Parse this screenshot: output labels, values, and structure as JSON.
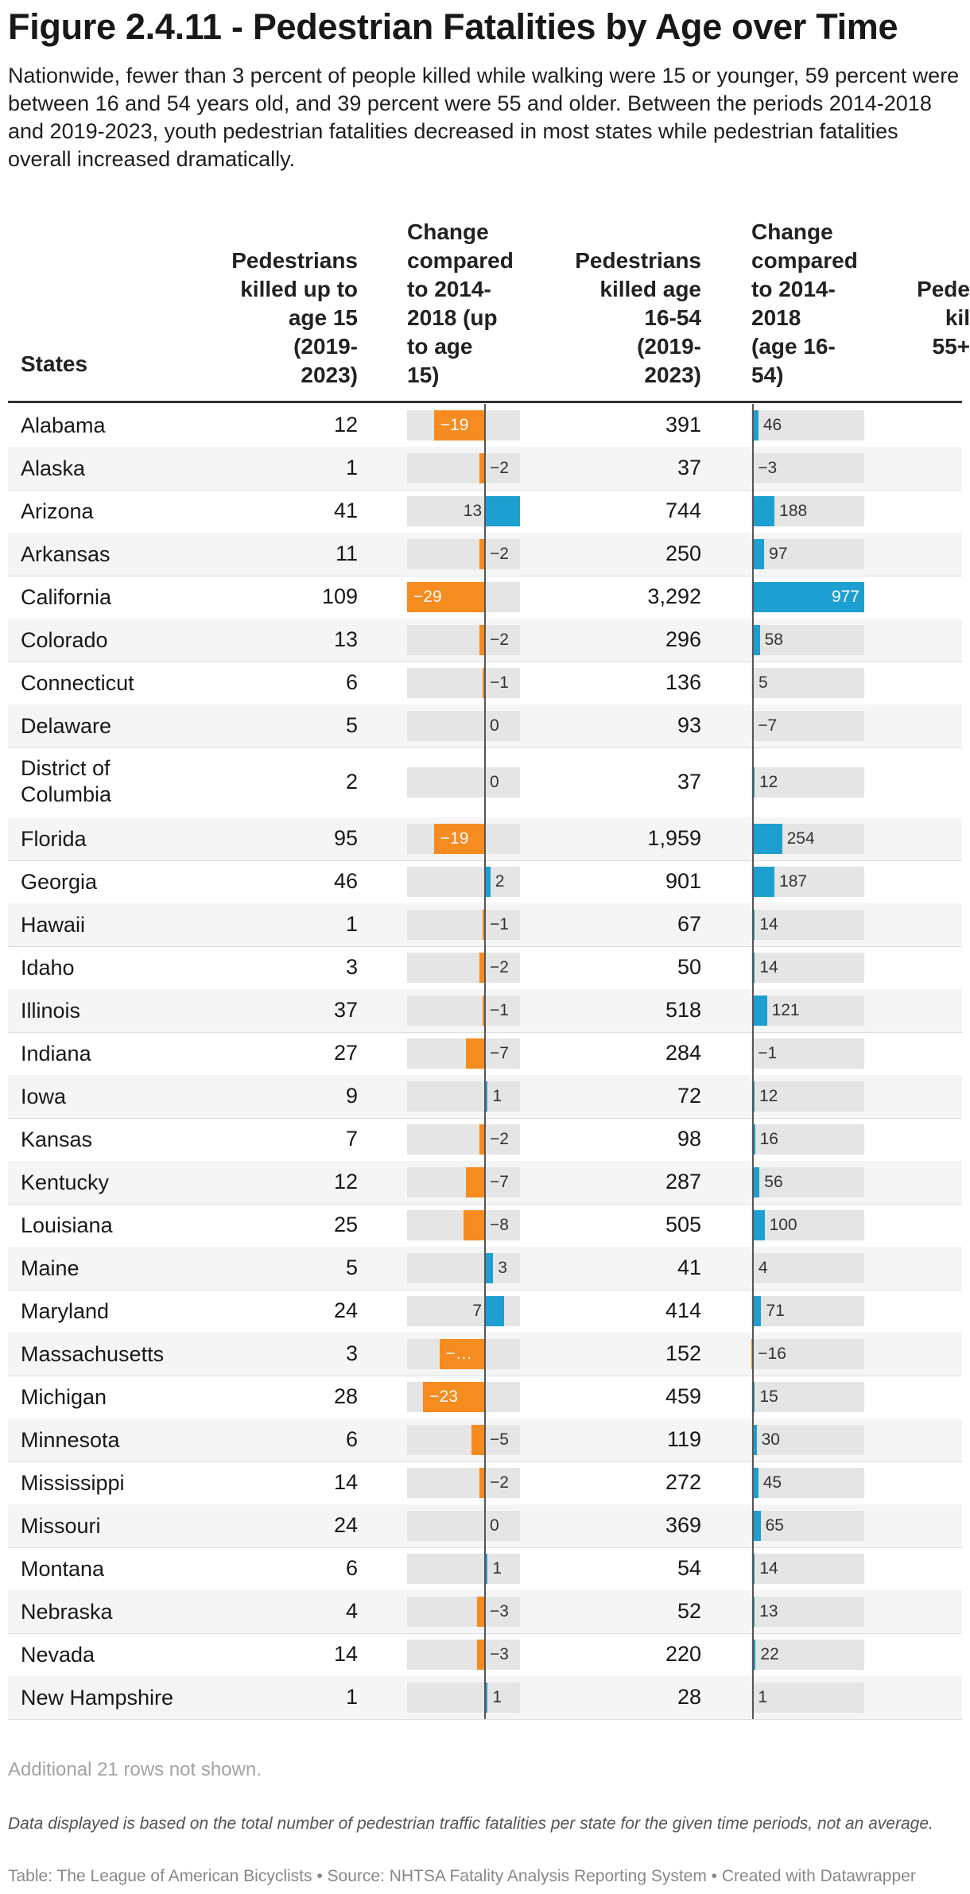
{
  "title": "Figure 2.4.11 - Pedestrian Fatalities by Age over Time",
  "subtitle": "Nationwide, fewer than 3 percent of people killed while walking were 15 or younger, 59 percent were between 16 and 54 years old, and 39 percent were 55 and older. Between the periods 2014-2018 and 2019-2023, youth pedestrian fatalities decreased in most states while pedestrian fatalities overall increased dramatically.",
  "colors": {
    "negative": "#f68b1f",
    "positive": "#1d9fd1",
    "bar_background": "#e5e5e5"
  },
  "headers": {
    "state": "States",
    "killed_15_lines": [
      "Pedestrians",
      "killed up to",
      "age 15",
      "(2019-",
      "2023)"
    ],
    "change_15_lines": [
      "Change",
      "compared",
      "to 2014-",
      "2018 (up",
      "to age",
      "15)"
    ],
    "killed_16_54_lines": [
      "Pedestrians",
      "killed age",
      "16-54",
      "(2019-",
      "2023)"
    ],
    "change_16_54_lines": [
      "Change",
      "compared",
      "to 2014-",
      "2018",
      "(age 16-",
      "54)"
    ],
    "killed_55_lines": [
      "Pede",
      "kil",
      "55+"
    ]
  },
  "chart_data": {
    "type": "table",
    "columns": [
      "States",
      "Pedestrians killed up to age 15 (2019-2023)",
      "Change compared to 2014-2018 (up to age 15)",
      "Pedestrians killed age 16-54 (2019-2023)",
      "Change compared to 2014-2018 (age 16-54)"
    ],
    "change_15_domain": [
      -29,
      13
    ],
    "change_16_54_domain": [
      -16,
      977
    ],
    "rows": [
      {
        "state": "Alabama",
        "k15": "12",
        "c15": -19,
        "c15_label": "−19",
        "k1654": "391",
        "c1654": 46,
        "c1654_label": "46"
      },
      {
        "state": "Alaska",
        "k15": "1",
        "c15": -2,
        "c15_label": "−2",
        "k1654": "37",
        "c1654": -3,
        "c1654_label": "−3"
      },
      {
        "state": "Arizona",
        "k15": "41",
        "c15": 13,
        "c15_label": "13",
        "k1654": "744",
        "c1654": 188,
        "c1654_label": "188"
      },
      {
        "state": "Arkansas",
        "k15": "11",
        "c15": -2,
        "c15_label": "−2",
        "k1654": "250",
        "c1654": 97,
        "c1654_label": "97"
      },
      {
        "state": "California",
        "k15": "109",
        "c15": -29,
        "c15_label": "−29",
        "k1654": "3,292",
        "c1654": 977,
        "c1654_label": "977"
      },
      {
        "state": "Colorado",
        "k15": "13",
        "c15": -2,
        "c15_label": "−2",
        "k1654": "296",
        "c1654": 58,
        "c1654_label": "58"
      },
      {
        "state": "Connecticut",
        "k15": "6",
        "c15": -1,
        "c15_label": "−1",
        "k1654": "136",
        "c1654": 5,
        "c1654_label": "5"
      },
      {
        "state": "Delaware",
        "k15": "5",
        "c15": 0,
        "c15_label": "0",
        "k1654": "93",
        "c1654": -7,
        "c1654_label": "−7"
      },
      {
        "state": "District of Columbia",
        "k15": "2",
        "c15": 0,
        "c15_label": "0",
        "k1654": "37",
        "c1654": 12,
        "c1654_label": "12"
      },
      {
        "state": "Florida",
        "k15": "95",
        "c15": -19,
        "c15_label": "−19",
        "k1654": "1,959",
        "c1654": 254,
        "c1654_label": "254"
      },
      {
        "state": "Georgia",
        "k15": "46",
        "c15": 2,
        "c15_label": "2",
        "k1654": "901",
        "c1654": 187,
        "c1654_label": "187"
      },
      {
        "state": "Hawaii",
        "k15": "1",
        "c15": -1,
        "c15_label": "−1",
        "k1654": "67",
        "c1654": 14,
        "c1654_label": "14"
      },
      {
        "state": "Idaho",
        "k15": "3",
        "c15": -2,
        "c15_label": "−2",
        "k1654": "50",
        "c1654": 14,
        "c1654_label": "14"
      },
      {
        "state": "Illinois",
        "k15": "37",
        "c15": -1,
        "c15_label": "−1",
        "k1654": "518",
        "c1654": 121,
        "c1654_label": "121"
      },
      {
        "state": "Indiana",
        "k15": "27",
        "c15": -7,
        "c15_label": "−7",
        "k1654": "284",
        "c1654": -1,
        "c1654_label": "−1"
      },
      {
        "state": "Iowa",
        "k15": "9",
        "c15": 1,
        "c15_label": "1",
        "k1654": "72",
        "c1654": 12,
        "c1654_label": "12"
      },
      {
        "state": "Kansas",
        "k15": "7",
        "c15": -2,
        "c15_label": "−2",
        "k1654": "98",
        "c1654": 16,
        "c1654_label": "16"
      },
      {
        "state": "Kentucky",
        "k15": "12",
        "c15": -7,
        "c15_label": "−7",
        "k1654": "287",
        "c1654": 56,
        "c1654_label": "56"
      },
      {
        "state": "Louisiana",
        "k15": "25",
        "c15": -8,
        "c15_label": "−8",
        "k1654": "505",
        "c1654": 100,
        "c1654_label": "100"
      },
      {
        "state": "Maine",
        "k15": "5",
        "c15": 3,
        "c15_label": "3",
        "k1654": "41",
        "c1654": 4,
        "c1654_label": "4"
      },
      {
        "state": "Maryland",
        "k15": "24",
        "c15": 7,
        "c15_label": "7",
        "k1654": "414",
        "c1654": 71,
        "c1654_label": "71"
      },
      {
        "state": "Massachusetts",
        "k15": "3",
        "c15": -17,
        "c15_label": "−…",
        "k1654": "152",
        "c1654": -16,
        "c1654_label": "−16"
      },
      {
        "state": "Michigan",
        "k15": "28",
        "c15": -23,
        "c15_label": "−23",
        "k1654": "459",
        "c1654": 15,
        "c1654_label": "15"
      },
      {
        "state": "Minnesota",
        "k15": "6",
        "c15": -5,
        "c15_label": "−5",
        "k1654": "119",
        "c1654": 30,
        "c1654_label": "30"
      },
      {
        "state": "Mississippi",
        "k15": "14",
        "c15": -2,
        "c15_label": "−2",
        "k1654": "272",
        "c1654": 45,
        "c1654_label": "45"
      },
      {
        "state": "Missouri",
        "k15": "24",
        "c15": 0,
        "c15_label": "0",
        "k1654": "369",
        "c1654": 65,
        "c1654_label": "65"
      },
      {
        "state": "Montana",
        "k15": "6",
        "c15": 1,
        "c15_label": "1",
        "k1654": "54",
        "c1654": 14,
        "c1654_label": "14"
      },
      {
        "state": "Nebraska",
        "k15": "4",
        "c15": -3,
        "c15_label": "−3",
        "k1654": "52",
        "c1654": 13,
        "c1654_label": "13"
      },
      {
        "state": "Nevada",
        "k15": "14",
        "c15": -3,
        "c15_label": "−3",
        "k1654": "220",
        "c1654": 22,
        "c1654_label": "22"
      },
      {
        "state": "New Hampshire",
        "k15": "1",
        "c15": 1,
        "c15_label": "1",
        "k1654": "28",
        "c1654": 1,
        "c1654_label": "1"
      }
    ]
  },
  "notes": {
    "rows_hidden": "Additional 21 rows not shown.",
    "footnote": "Data displayed is based on the total number of pedestrian traffic fatalities per state for the given time periods, not an average.",
    "credits": "Table: The League of American Bicyclists • Source: NHTSA Fatality Analysis Reporting System • Created with Datawrapper"
  }
}
